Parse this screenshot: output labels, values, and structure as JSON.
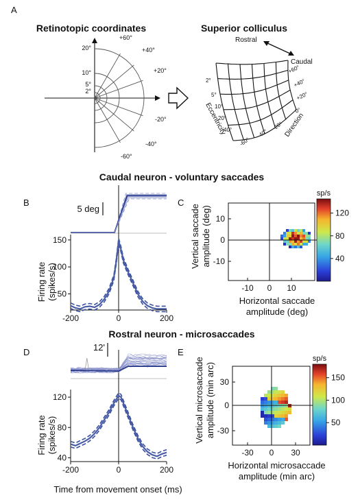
{
  "panelA": {
    "label": "A",
    "retino_title": "Retinotopic coordinates",
    "sc_title": "Superior colliculus",
    "retino_ticks": [
      "20°",
      "10°",
      "5°",
      "2°"
    ],
    "retino_angles": [
      "+60°",
      "+40°",
      "+20°",
      "-20°",
      "-40°",
      "-60°"
    ],
    "sc_labels": {
      "rostral": "Rostral",
      "caudal": "Caudal",
      "ecc_ticks": [
        "2°",
        "5°",
        "10°",
        "20°",
        "40°"
      ],
      "eccentricity": "Eccentricity",
      "dir_right": [
        "+60°",
        "+40°",
        "+20°",
        "0°"
      ],
      "dir_bottom": [
        "-60°",
        "-40°",
        "-20°"
      ],
      "direction": "Direction"
    }
  },
  "section1_title": "Caudal neuron - voluntary saccades",
  "section2_title": "Rostral neuron - microsaccades",
  "panelB": {
    "label": "B",
    "scale_label": "5 deg",
    "ylabel": "Firing rate\n(spikes/s)",
    "chart_data": {
      "type": "line",
      "xlim": [
        -200,
        200
      ],
      "ylim": [
        20,
        160
      ],
      "xticks": [
        "-200",
        "0",
        "200"
      ],
      "yticks": [
        "50",
        "100",
        "150"
      ],
      "series": [
        {
          "x": [
            -200,
            -180,
            -160,
            -140,
            -120,
            -100,
            -80,
            -60,
            -40,
            -20,
            -10,
            0,
            10,
            20,
            40,
            60,
            80,
            100,
            120,
            140,
            160,
            180,
            200
          ],
          "values": [
            28,
            24,
            22,
            26,
            27,
            25,
            30,
            40,
            55,
            80,
            110,
            148,
            132,
            112,
            90,
            70,
            50,
            36,
            28,
            24,
            22,
            22,
            22
          ]
        }
      ]
    }
  },
  "panelC": {
    "label": "C",
    "xlabel": "Horizontal saccade\namplitude (deg)",
    "ylabel": "Vertical saccade\namplitude (deg)",
    "xticks": [
      "-10",
      "0",
      "10"
    ],
    "yticks": [
      "10",
      "0",
      "-10"
    ],
    "colorbar": {
      "unit": "sp/s",
      "ticks": [
        "120",
        "80",
        "40"
      ],
      "range": [
        0,
        145
      ]
    }
  },
  "panelD": {
    "label": "D",
    "scale_label": "12'",
    "ylabel": "Firing rate\n(spikes/s)",
    "xlabel": "Time from movement onset (ms)",
    "chart_data": {
      "type": "line",
      "xlim": [
        -200,
        200
      ],
      "ylim": [
        35,
        130
      ],
      "xticks": [
        "-200",
        "0",
        "200"
      ],
      "yticks": [
        "120",
        "80",
        "40"
      ],
      "series": [
        {
          "x": [
            -200,
            -180,
            -160,
            -140,
            -120,
            -100,
            -80,
            -60,
            -40,
            -20,
            0,
            10,
            20,
            40,
            60,
            80,
            100,
            120,
            140,
            160,
            180,
            200
          ],
          "values": [
            58,
            56,
            59,
            62,
            66,
            72,
            80,
            90,
            100,
            112,
            122,
            120,
            112,
            96,
            80,
            66,
            55,
            48,
            44,
            42,
            45,
            47
          ]
        }
      ]
    }
  },
  "panelE": {
    "label": "E",
    "xlabel": "Horizontal microsaccade\namplitude (min arc)",
    "ylabel": "Vertical microsaccade\namplitude (min arc)",
    "xticks": [
      "-30",
      "0",
      "30"
    ],
    "yticks": [
      "30",
      "0",
      "-30"
    ],
    "colorbar": {
      "unit": "sp/s",
      "ticks": [
        "150",
        "100",
        "50"
      ],
      "range": [
        0,
        180
      ]
    }
  }
}
